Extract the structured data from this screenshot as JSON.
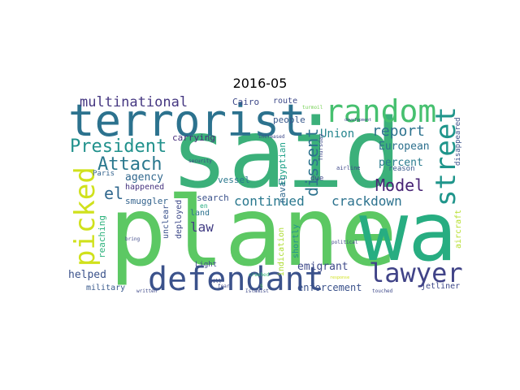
{
  "title": "2016-05",
  "words": [
    {
      "text": "said",
      "color": "#3bb07a"
    },
    {
      "text": "plane",
      "color": "#5cc863"
    },
    {
      "text": "wa",
      "color": "#27ad81"
    },
    {
      "text": "terrorist",
      "color": "#2c728e"
    },
    {
      "text": "random",
      "color": "#46c06f"
    },
    {
      "text": "street",
      "color": "#1f958b"
    },
    {
      "text": "picked",
      "color": "#d0e11c"
    },
    {
      "text": "defendant",
      "color": "#3b528b"
    },
    {
      "text": "lawyer",
      "color": "#404387"
    },
    {
      "text": "President",
      "color": "#21918c"
    },
    {
      "text": "Attach",
      "color": "#2a788e"
    },
    {
      "text": "multinational",
      "color": "#453781"
    },
    {
      "text": "report",
      "color": "#2c728e"
    },
    {
      "text": "Union",
      "color": "#25858e"
    },
    {
      "text": "dissent",
      "color": "#2c728e"
    },
    {
      "text": "Model",
      "color": "#482475"
    },
    {
      "text": "European",
      "color": "#2d708e"
    },
    {
      "text": "el",
      "color": "#31688e"
    },
    {
      "text": "agency",
      "color": "#31688e"
    },
    {
      "text": "continued",
      "color": "#2a788e"
    },
    {
      "text": "crackdown",
      "color": "#2c728e"
    },
    {
      "text": "percent",
      "color": "#297b8e"
    },
    {
      "text": "law",
      "color": "#433e85"
    },
    {
      "text": "Cairo",
      "color": "#3e4989"
    },
    {
      "text": "route",
      "color": "#3e4989"
    },
    {
      "text": "people",
      "color": "#38598c"
    },
    {
      "text": "carrying",
      "color": "#472d7b"
    },
    {
      "text": "vessel",
      "color": "#2a788e"
    },
    {
      "text": "Paris",
      "color": "#33638d"
    },
    {
      "text": "happened",
      "color": "#46337f"
    },
    {
      "text": "smuggler",
      "color": "#33638d"
    },
    {
      "text": "reaching",
      "color": "#2db27d"
    },
    {
      "text": "Egyptian",
      "color": "#1fa188"
    },
    {
      "text": "naval",
      "color": "#31688e"
    },
    {
      "text": "due",
      "color": "#3e4989"
    },
    {
      "text": "search",
      "color": "#3b528b"
    },
    {
      "text": "land",
      "color": "#2c728e"
    },
    {
      "text": "en",
      "color": "#26ad81"
    },
    {
      "text": "deployed",
      "color": "#3e4989"
    },
    {
      "text": "unclear",
      "color": "#3b528b"
    },
    {
      "text": "indication",
      "color": "#addc30"
    },
    {
      "text": "shortly",
      "color": "#21918c"
    },
    {
      "text": "emigrant",
      "color": "#3e4989"
    },
    {
      "text": "enforcement",
      "color": "#3b528b"
    },
    {
      "text": "helped",
      "color": "#3b528b"
    },
    {
      "text": "military",
      "color": "#38598c"
    },
    {
      "text": "Light",
      "color": "#3e4989"
    },
    {
      "text": "jetliner",
      "color": "#3e4989"
    },
    {
      "text": "aircraft",
      "color": "#b5de2b"
    },
    {
      "text": "disappeared",
      "color": "#3b528b"
    },
    {
      "text": "reason",
      "color": "#38598c"
    },
    {
      "text": "airline",
      "color": "#3e4989"
    },
    {
      "text": "Thursday",
      "color": "#3e4989"
    },
    {
      "text": "turmoil",
      "color": "#75d054"
    },
    {
      "text": "increased",
      "color": "#3e4989"
    },
    {
      "text": "security",
      "color": "#3e4989"
    },
    {
      "text": "crashed",
      "color": "#35b779"
    },
    {
      "text": "will",
      "color": "#3e4989"
    },
    {
      "text": "fear",
      "color": "#3e4989"
    },
    {
      "text": "political",
      "color": "#3e4989"
    },
    {
      "text": "response",
      "color": "#d0e11c"
    },
    {
      "text": "bring",
      "color": "#3e4989"
    },
    {
      "text": "written",
      "color": "#3e4989"
    },
    {
      "text": "Islamist",
      "color": "#3e4989"
    },
    {
      "text": "touched",
      "color": "#3e4989"
    },
    {
      "text": "development",
      "color": "#3e4989"
    },
    {
      "text": "S",
      "color": "#5ec962"
    }
  ]
}
